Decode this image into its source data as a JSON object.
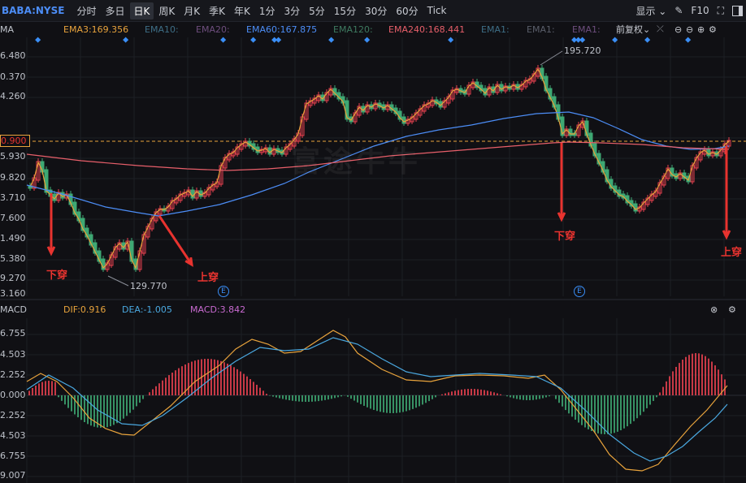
{
  "toolbar": {
    "symbol": "BABA:NYSE",
    "periods": [
      "分时",
      "多日",
      "日K",
      "周K",
      "月K",
      "季K",
      "年K",
      "1分",
      "3分",
      "5分",
      "15分",
      "30分",
      "60分",
      "Tick"
    ],
    "active_period": "日K",
    "display_label": "显示",
    "f10_label": "F10"
  },
  "indicator_bar": {
    "ma_label": "MA",
    "items": [
      {
        "text": "EMA3:169.356",
        "color": "#e8a33c"
      },
      {
        "text": "EMA10:",
        "color": "#3e6e86"
      },
      {
        "text": "EMA20:",
        "color": "#6e4e7e"
      },
      {
        "text": "EMA60:167.875",
        "color": "#4c8df6"
      },
      {
        "text": "EMA120:",
        "color": "#3e7a60"
      },
      {
        "text": "EMA240:168.441",
        "color": "#e85f6a"
      },
      {
        "text": "EMA1:",
        "color": "#3e6e86"
      },
      {
        "text": "EMA1:",
        "color": "#5a5e6a"
      },
      {
        "text": "EMA1:",
        "color": "#6e4e7e"
      }
    ],
    "adjust_label": "前复权"
  },
  "price_axis": [
    "6.480",
    "0.370",
    "4.260",
    "0.900",
    "5.930",
    "9.820",
    "3.710",
    "7.600",
    "1.490",
    "5.380",
    "9.270",
    "3.160"
  ],
  "current_price_label": "0.900",
  "annotations": {
    "high_label": "195.720",
    "low_label": "129.770",
    "cross_down_1": "下穿",
    "cross_up_1": "上穿",
    "cross_down_2": "下穿",
    "cross_up_2": "上穿",
    "event_marker": "E",
    "watermark": "富途牛牛"
  },
  "macd_bar": {
    "label": "MACD",
    "dif": "DIF:0.916",
    "dea": "DEA:-1.005",
    "macd": "MACD:3.842",
    "dif_color": "#e8a33c",
    "dea_color": "#4aa8e0",
    "macd_color": "#c86ad0"
  },
  "macd_axis": [
    "6.755",
    "4.503",
    "2.252",
    "0.000",
    "2.252",
    "4.503",
    "6.755",
    "9.007"
  ],
  "colors": {
    "up": "#e8414f",
    "down": "#3ea873",
    "ema3": "#e8a33c",
    "ema60": "#4c8df6",
    "ema240": "#e85f6a",
    "arrow": "#e8332f",
    "blue_marker": "#3a8ef6"
  }
}
